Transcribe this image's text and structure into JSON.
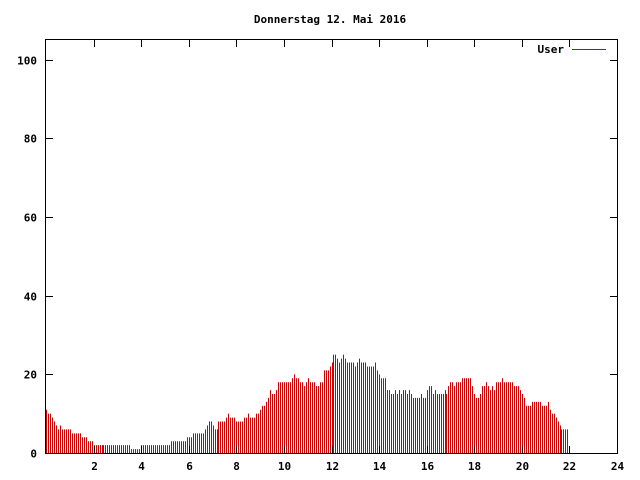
{
  "chart_data": {
    "type": "bar",
    "title": "Donnerstag 12. Mai 2016",
    "xlabel": "",
    "ylabel": "",
    "xlim": [
      0,
      24
    ],
    "ylim": [
      0,
      105
    ],
    "x_ticks": [
      2,
      4,
      6,
      8,
      10,
      12,
      14,
      16,
      18,
      20,
      22,
      24
    ],
    "x_tick_labels": [
      "2",
      "4",
      "6",
      "8",
      "10",
      "12",
      "14",
      "16",
      "18",
      "20",
      "22",
      "24"
    ],
    "y_ticks": [
      0,
      20,
      40,
      60,
      80,
      100
    ],
    "y_tick_labels": [
      "0",
      "20",
      "40",
      "60",
      "80",
      "100"
    ],
    "grid": false,
    "legend_position": "top-right",
    "color": "#cc0000",
    "series": [
      {
        "name": "User",
        "interval_minutes": 5,
        "values": [
          11,
          10,
          10,
          9,
          8,
          7,
          6,
          7,
          6,
          6,
          6,
          6,
          6,
          5,
          5,
          5,
          5,
          5,
          4,
          4,
          4,
          3,
          3,
          3,
          2,
          2,
          2,
          2,
          2,
          2,
          2,
          2,
          2,
          2,
          2,
          2,
          2,
          2,
          2,
          2,
          2,
          2,
          2,
          1,
          1,
          1,
          1,
          1,
          2,
          2,
          2,
          2,
          2,
          2,
          2,
          2,
          2,
          2,
          2,
          2,
          2,
          2,
          2,
          3,
          3,
          3,
          3,
          3,
          3,
          3,
          3,
          4,
          4,
          4,
          5,
          5,
          5,
          5,
          5,
          5,
          6,
          7,
          8,
          8,
          7,
          6,
          6,
          8,
          8,
          8,
          8,
          9,
          10,
          9,
          9,
          9,
          8,
          8,
          8,
          8,
          9,
          9,
          10,
          9,
          9,
          9,
          10,
          10,
          11,
          12,
          12,
          13,
          14,
          16,
          15,
          15,
          16,
          18,
          18,
          18,
          18,
          18,
          18,
          18,
          19,
          20,
          19,
          19,
          18,
          18,
          17,
          18,
          19,
          18,
          18,
          18,
          17,
          17,
          18,
          18,
          21,
          21,
          21,
          22,
          23,
          25,
          25,
          24,
          23,
          24,
          25,
          24,
          23,
          23,
          23,
          23,
          22,
          23,
          24,
          23,
          23,
          23,
          22,
          22,
          22,
          22,
          23,
          21,
          20,
          19,
          19,
          19,
          16,
          16,
          15,
          15,
          16,
          15,
          16,
          15,
          16,
          16,
          15,
          16,
          15,
          14,
          14,
          14,
          14,
          15,
          14,
          14,
          16,
          17,
          17,
          15,
          16,
          15,
          15,
          15,
          15,
          16,
          15,
          17,
          18,
          18,
          17,
          18,
          18,
          18,
          19,
          19,
          19,
          19,
          19,
          17,
          15,
          14,
          14,
          15,
          17,
          17,
          18,
          17,
          16,
          17,
          16,
          18,
          18,
          18,
          19,
          18,
          18,
          18,
          18,
          18,
          17,
          17,
          17,
          16,
          15,
          14,
          12,
          12,
          12,
          13,
          13,
          13,
          13,
          13,
          12,
          12,
          12,
          13,
          11,
          10,
          10,
          9,
          8,
          7,
          6,
          6,
          6,
          6
        ]
      }
    ]
  }
}
